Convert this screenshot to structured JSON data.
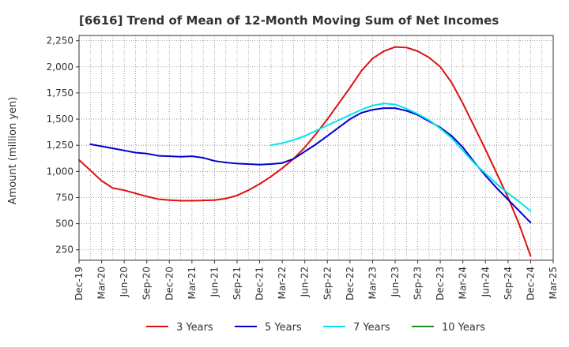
{
  "chart_data": {
    "type": "line",
    "title": "[6616]  Trend of Mean of 12-Month Moving Sum of Net Incomes",
    "ylabel": "Amount (million yen)",
    "xlabel": "",
    "ylim": [
      150,
      2300
    ],
    "yticks": [
      250,
      500,
      750,
      "1,000",
      "1,250",
      "1,500",
      "1,750",
      "2,000",
      "2,250"
    ],
    "ytick_values": [
      250,
      500,
      750,
      1000,
      1250,
      1500,
      1750,
      2000,
      2250
    ],
    "x_categories": [
      "Dec-19",
      "Mar-20",
      "Jun-20",
      "Sep-20",
      "Dec-20",
      "Mar-21",
      "Jun-21",
      "Sep-21",
      "Dec-21",
      "Mar-22",
      "Jun-22",
      "Sep-22",
      "Dec-22",
      "Mar-23",
      "Jun-23",
      "Sep-23",
      "Dec-23",
      "Mar-24",
      "Jun-24",
      "Sep-24",
      "Dec-24",
      "Mar-25"
    ],
    "grid": true,
    "legend_position": "bottom",
    "series": [
      {
        "name": "3 Years",
        "color": "#dd1111",
        "points": [
          [
            0,
            1110
          ],
          [
            0.5,
            1010
          ],
          [
            1,
            910
          ],
          [
            1.5,
            840
          ],
          [
            2,
            820
          ],
          [
            2.5,
            790
          ],
          [
            3,
            760
          ],
          [
            3.5,
            735
          ],
          [
            4,
            725
          ],
          [
            4.5,
            720
          ],
          [
            5,
            720
          ],
          [
            5.5,
            722
          ],
          [
            6,
            725
          ],
          [
            6.5,
            740
          ],
          [
            7,
            770
          ],
          [
            7.5,
            820
          ],
          [
            8,
            880
          ],
          [
            8.5,
            950
          ],
          [
            9,
            1030
          ],
          [
            9.5,
            1120
          ],
          [
            10,
            1230
          ],
          [
            10.5,
            1360
          ],
          [
            11,
            1500
          ],
          [
            11.5,
            1650
          ],
          [
            12,
            1800
          ],
          [
            12.5,
            1960
          ],
          [
            13,
            2080
          ],
          [
            13.5,
            2150
          ],
          [
            14,
            2190
          ],
          [
            14.5,
            2185
          ],
          [
            15,
            2150
          ],
          [
            15.5,
            2090
          ],
          [
            16,
            2000
          ],
          [
            16.5,
            1850
          ],
          [
            17,
            1650
          ],
          [
            17.5,
            1430
          ],
          [
            18,
            1210
          ],
          [
            18.5,
            980
          ],
          [
            19,
            750
          ],
          [
            19.5,
            490
          ],
          [
            20,
            190
          ]
        ]
      },
      {
        "name": "5 Years",
        "color": "#0000cc",
        "points": [
          [
            0.5,
            1260
          ],
          [
            1,
            1240
          ],
          [
            1.5,
            1220
          ],
          [
            2,
            1200
          ],
          [
            2.5,
            1180
          ],
          [
            3,
            1170
          ],
          [
            3.5,
            1150
          ],
          [
            4,
            1145
          ],
          [
            4.5,
            1140
          ],
          [
            5,
            1145
          ],
          [
            5.5,
            1130
          ],
          [
            6,
            1100
          ],
          [
            6.5,
            1085
          ],
          [
            7,
            1075
          ],
          [
            7.5,
            1070
          ],
          [
            8,
            1065
          ],
          [
            8.5,
            1070
          ],
          [
            9,
            1080
          ],
          [
            9.5,
            1120
          ],
          [
            10,
            1190
          ],
          [
            10.5,
            1260
          ],
          [
            11,
            1340
          ],
          [
            11.5,
            1420
          ],
          [
            12,
            1500
          ],
          [
            12.5,
            1560
          ],
          [
            13,
            1590
          ],
          [
            13.5,
            1605
          ],
          [
            14,
            1605
          ],
          [
            14.5,
            1580
          ],
          [
            15,
            1540
          ],
          [
            15.5,
            1480
          ],
          [
            16,
            1420
          ],
          [
            16.5,
            1340
          ],
          [
            17,
            1230
          ],
          [
            17.5,
            1090
          ],
          [
            18,
            960
          ],
          [
            18.5,
            840
          ],
          [
            19,
            730
          ],
          [
            19.5,
            620
          ],
          [
            20,
            510
          ]
        ]
      },
      {
        "name": "7 Years",
        "color": "#00e5ee",
        "points": [
          [
            8.5,
            1250
          ],
          [
            9,
            1270
          ],
          [
            9.5,
            1300
          ],
          [
            10,
            1340
          ],
          [
            10.5,
            1390
          ],
          [
            11,
            1440
          ],
          [
            11.5,
            1490
          ],
          [
            12,
            1540
          ],
          [
            12.5,
            1590
          ],
          [
            13,
            1630
          ],
          [
            13.5,
            1650
          ],
          [
            14,
            1640
          ],
          [
            14.5,
            1600
          ],
          [
            15,
            1550
          ],
          [
            15.5,
            1490
          ],
          [
            16,
            1410
          ],
          [
            16.5,
            1320
          ],
          [
            17,
            1200
          ],
          [
            17.5,
            1080
          ],
          [
            18,
            980
          ],
          [
            18.5,
            880
          ],
          [
            19,
            790
          ],
          [
            19.5,
            710
          ],
          [
            20,
            620
          ]
        ]
      },
      {
        "name": "10 Years",
        "color": "#228b22",
        "points": []
      }
    ]
  }
}
